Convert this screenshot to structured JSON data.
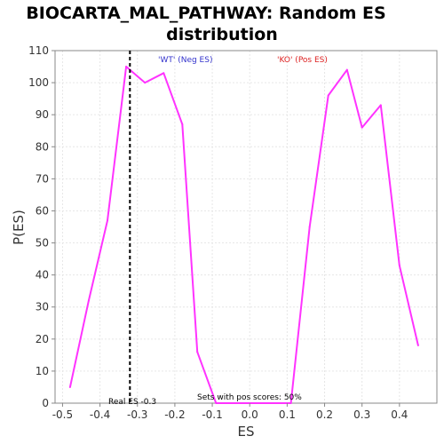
{
  "chart_data": {
    "type": "line",
    "title_lines": [
      "BIOCARTA_MAL_PATHWAY: Random ES",
      "distribution"
    ],
    "xlabel": "ES",
    "ylabel": "P(ES)",
    "xlim": [
      -0.52,
      0.5
    ],
    "ylim": [
      0,
      110
    ],
    "xticks": [
      -0.5,
      -0.4,
      -0.3,
      -0.2,
      -0.1,
      0.0,
      0.1,
      0.2,
      0.3,
      0.4
    ],
    "xtick_labels": [
      "-0.5",
      "-0.4",
      "-0.3",
      "-0.2",
      "-0.1",
      "0.0",
      "0.1",
      "0.2",
      "0.3",
      "0.4"
    ],
    "yticks": [
      0,
      10,
      20,
      30,
      40,
      50,
      60,
      70,
      80,
      90,
      100,
      110
    ],
    "ytick_labels": [
      "0",
      "10",
      "20",
      "30",
      "40",
      "50",
      "60",
      "70",
      "80",
      "90",
      "100",
      "110"
    ],
    "grid": true,
    "series": [
      {
        "color": "#ff33ff",
        "x": [
          -0.48,
          -0.43,
          -0.38,
          -0.33,
          -0.28,
          -0.23,
          -0.18,
          -0.14,
          -0.09,
          -0.04,
          0.01,
          0.06,
          0.11,
          0.16,
          0.21,
          0.26,
          0.3,
          0.35,
          0.4,
          0.45
        ],
        "y": [
          5,
          32,
          57,
          105,
          100,
          103,
          87,
          16,
          0,
          0,
          0,
          0,
          0,
          55,
          96,
          104,
          86,
          93,
          43,
          18
        ]
      }
    ],
    "real_es": -0.32,
    "annotations": {
      "wt": {
        "text": "'WT' (Neg ES)",
        "color": "#3333cc"
      },
      "ko": {
        "text": "'KO' (Pos ES)",
        "color": "#dd2222"
      },
      "real_es": {
        "text": "Real ES -0.3",
        "color": "#000000"
      },
      "pos_scores": {
        "text": "Sets with pos scores: 50%",
        "color": "#000000"
      }
    }
  }
}
